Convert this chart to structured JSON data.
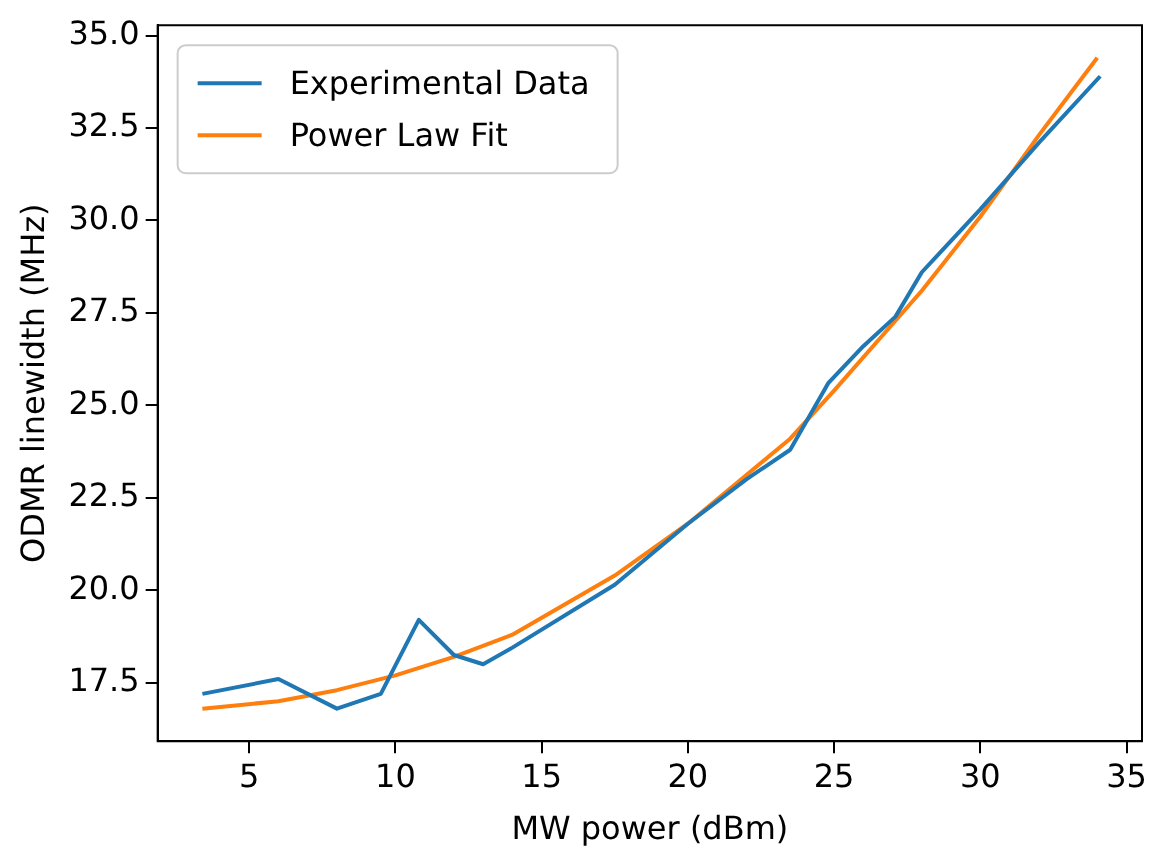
{
  "chart_data": {
    "type": "line",
    "xlabel": "MW power (dBm)",
    "ylabel": "ODMR linewidth (MHz)",
    "xlim": [
      1.87,
      35.53
    ],
    "xticks": [
      5,
      10,
      15,
      20,
      25,
      30,
      35
    ],
    "ylim": [
      15.92,
      35.28
    ],
    "yticks": [
      {
        "value": 17.5,
        "label": "17.5"
      },
      {
        "value": 20,
        "label": "20.0"
      },
      {
        "value": 22.5,
        "label": "22.5"
      },
      {
        "value": 25,
        "label": "25.0"
      },
      {
        "value": 27.5,
        "label": "27.5"
      },
      {
        "value": 30,
        "label": "30.0"
      },
      {
        "value": 32.5,
        "label": "32.5"
      },
      {
        "value": 35,
        "label": "35.0"
      }
    ],
    "grid": false,
    "legend": "top left",
    "marker": "none",
    "line_style": "solid",
    "series": [
      {
        "name": "Experimental Data",
        "color": "#1f77b4",
        "x": [
          3.4,
          6,
          8,
          9.5,
          10.8,
          12,
          13,
          14,
          17.5,
          20,
          22,
          23.5,
          24.8,
          26,
          27.1,
          28,
          30,
          32,
          34.1
        ],
        "values": [
          17.2,
          17.6,
          16.8,
          17.2,
          19.2,
          18.25,
          18.0,
          18.45,
          20.15,
          21.8,
          23.0,
          23.8,
          25.6,
          26.6,
          27.4,
          28.6,
          30.3,
          32.1,
          33.9
        ]
      },
      {
        "name": "Power Law Fit",
        "color": "#ff7f0e",
        "x": [
          3.4,
          6,
          8,
          10,
          12,
          14,
          17.5,
          20,
          23.5,
          25,
          27,
          28,
          30,
          32,
          34
        ],
        "values": [
          16.8,
          17.0,
          17.3,
          17.7,
          18.2,
          18.8,
          20.4,
          21.8,
          24.1,
          25.4,
          27.2,
          28.1,
          30.1,
          32.3,
          34.4
        ]
      }
    ]
  }
}
